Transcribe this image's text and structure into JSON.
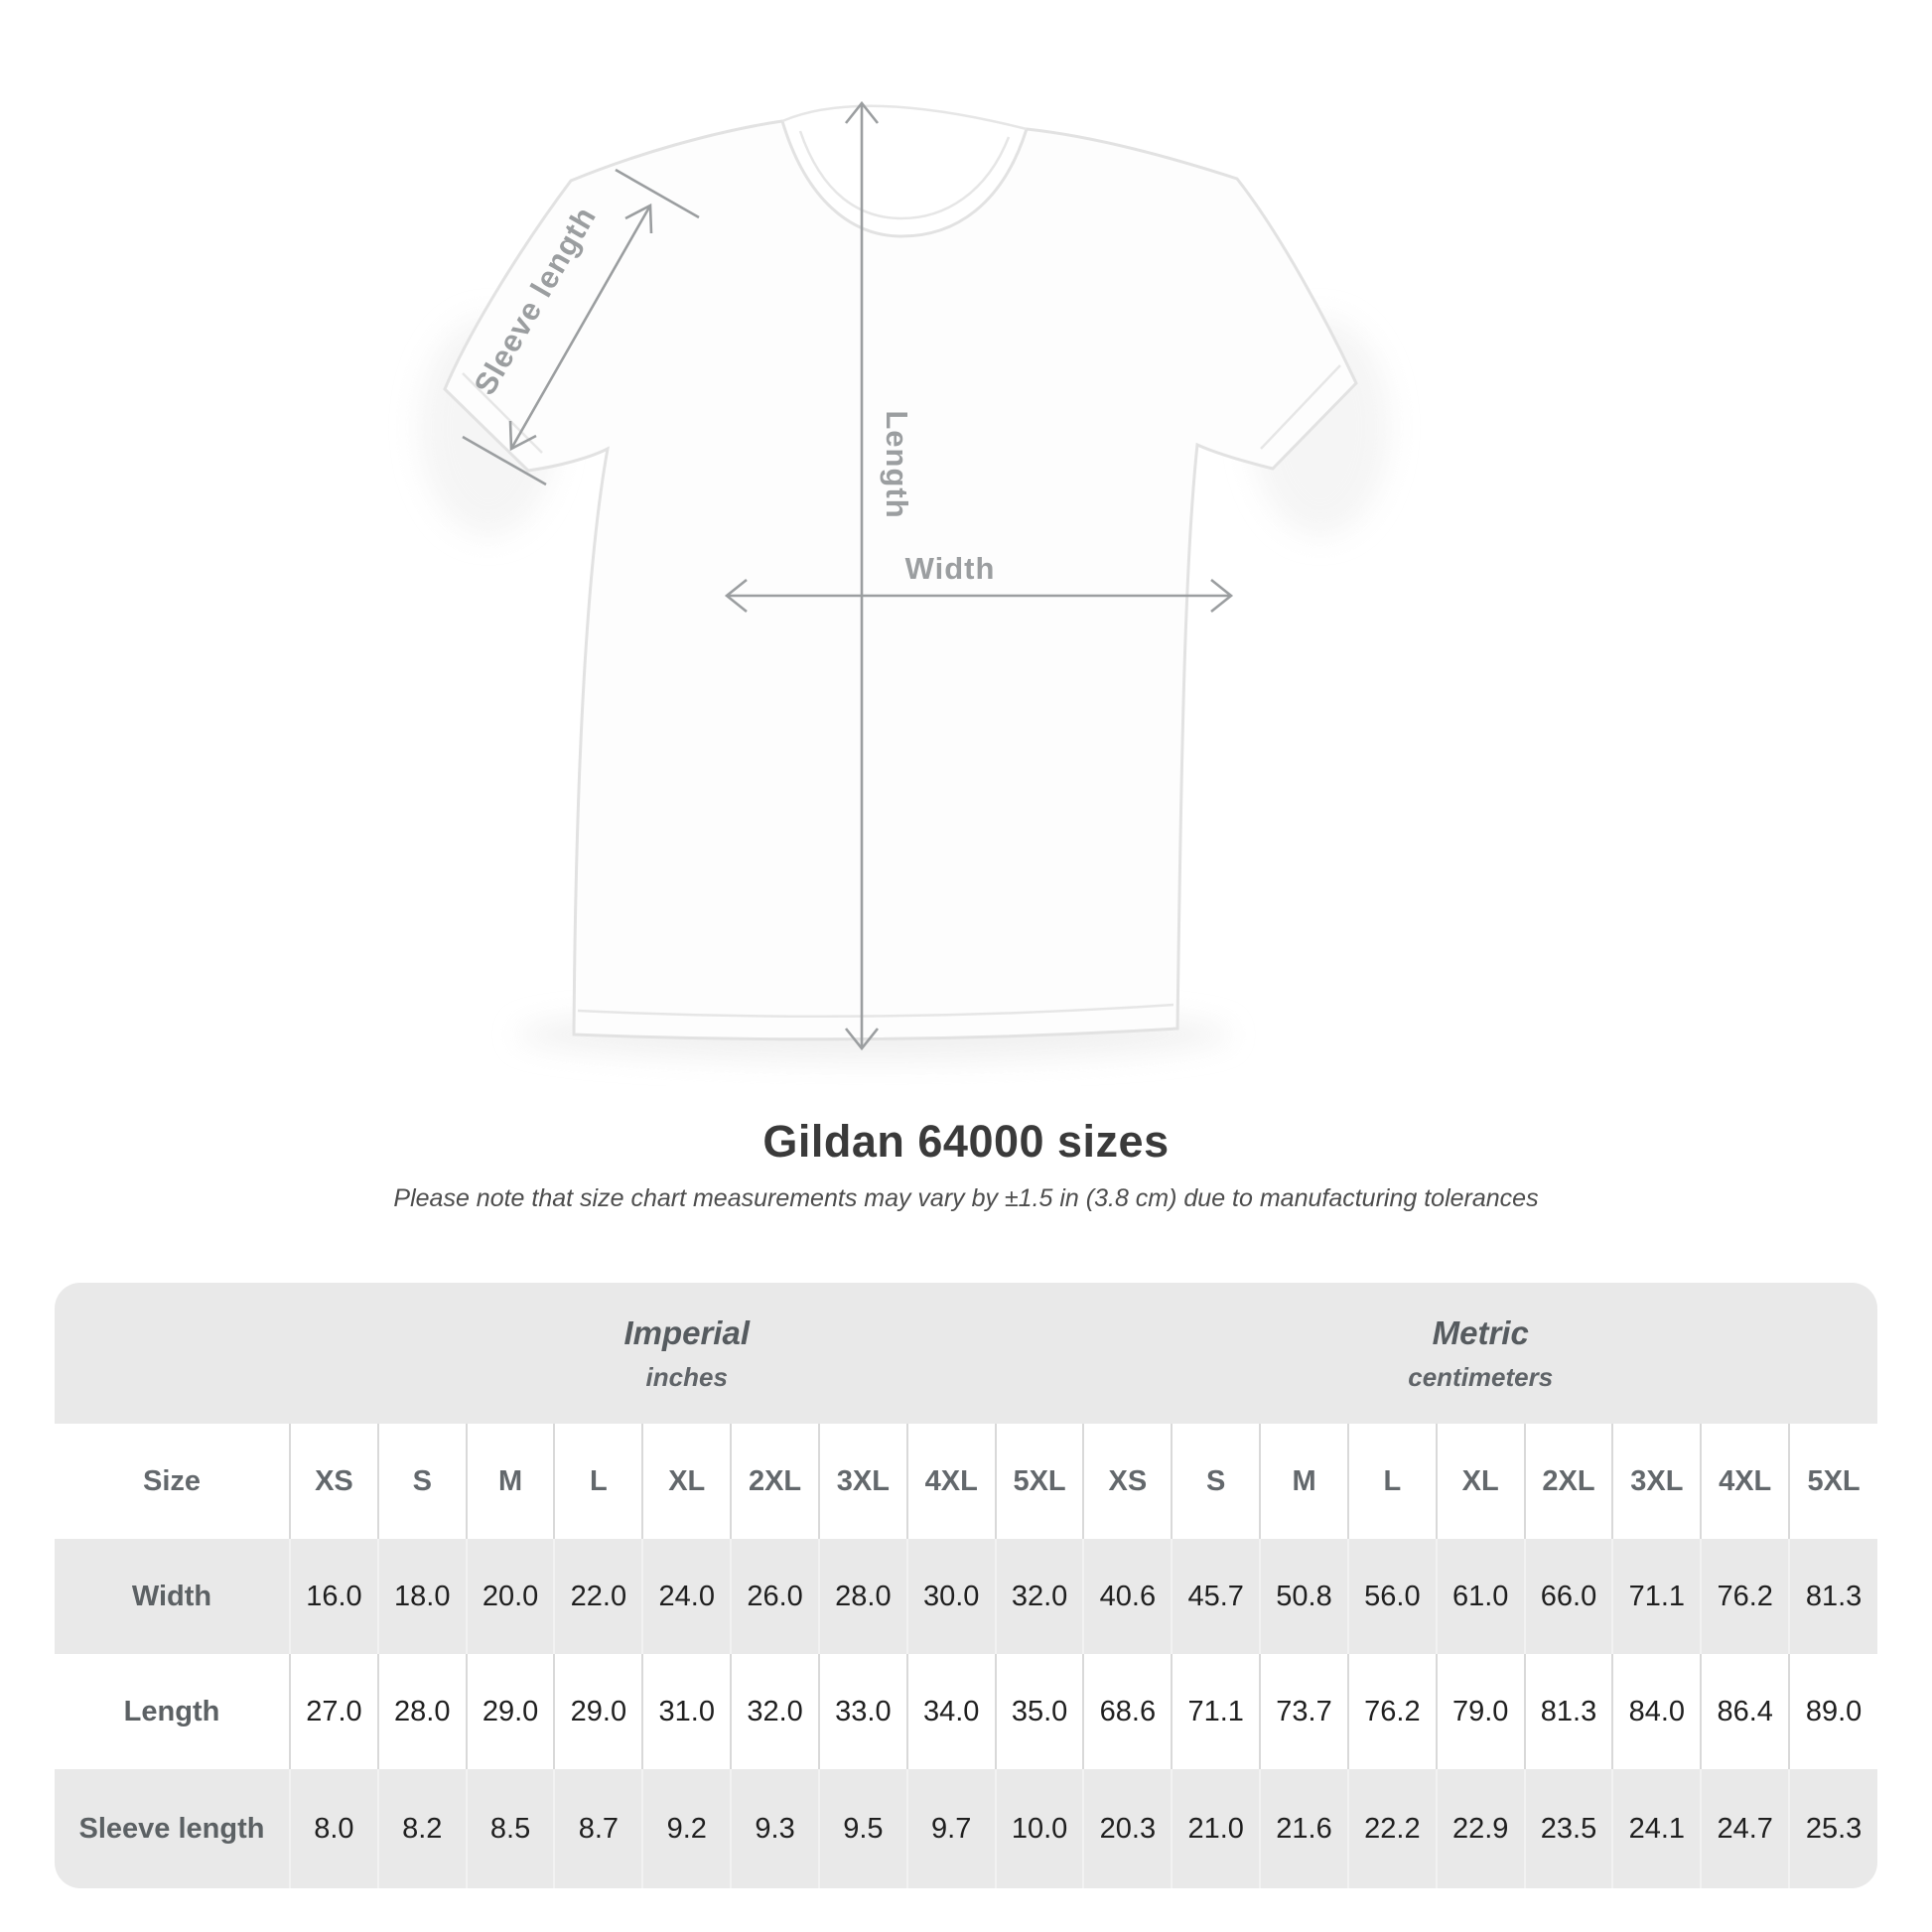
{
  "title": "Gildan 64000 sizes",
  "subtitle": "Please note that size chart measurements may vary by ±1.5 in (3.8 cm) due to manufacturing tolerances",
  "diagram": {
    "labels": {
      "sleeve_length": "Sleeve length",
      "length": "Length",
      "width": "Width"
    }
  },
  "table": {
    "size_col_header": "Size",
    "groups": [
      {
        "name": "Imperial",
        "unit": "inches",
        "sizes": [
          "XS",
          "S",
          "M",
          "L",
          "XL",
          "2XL",
          "3XL",
          "4XL",
          "5XL"
        ]
      },
      {
        "name": "Metric",
        "unit": "centimeters",
        "sizes": [
          "XS",
          "S",
          "M",
          "L",
          "XL",
          "2XL",
          "3XL",
          "4XL",
          "5XL"
        ]
      }
    ],
    "rows": [
      {
        "label": "Width",
        "values": [
          "16.0",
          "18.0",
          "20.0",
          "22.0",
          "24.0",
          "26.0",
          "28.0",
          "30.0",
          "32.0",
          "40.6",
          "45.7",
          "50.8",
          "56.0",
          "61.0",
          "66.0",
          "71.1",
          "76.2",
          "81.3"
        ]
      },
      {
        "label": "Length",
        "values": [
          "27.0",
          "28.0",
          "29.0",
          "29.0",
          "31.0",
          "32.0",
          "33.0",
          "34.0",
          "35.0",
          "68.6",
          "71.1",
          "73.7",
          "76.2",
          "79.0",
          "81.3",
          "84.0",
          "86.4",
          "89.0"
        ]
      },
      {
        "label": "Sleeve length",
        "values": [
          "8.0",
          "8.2",
          "8.5",
          "8.7",
          "9.2",
          "9.3",
          "9.5",
          "9.7",
          "10.0",
          "20.3",
          "21.0",
          "21.6",
          "22.2",
          "22.9",
          "23.5",
          "24.1",
          "24.7",
          "25.3"
        ]
      }
    ]
  },
  "chart_data": {
    "type": "table",
    "title": "Gildan 64000 sizes",
    "note": "Please note that size chart measurements may vary by ±1.5 in (3.8 cm) due to manufacturing tolerances",
    "unit_groups": [
      "Imperial (inches)",
      "Metric (centimeters)"
    ],
    "columns": [
      "Size",
      "XS",
      "S",
      "M",
      "L",
      "XL",
      "2XL",
      "3XL",
      "4XL",
      "5XL",
      "XS",
      "S",
      "M",
      "L",
      "XL",
      "2XL",
      "3XL",
      "4XL",
      "5XL"
    ],
    "rows": [
      [
        "Width",
        16.0,
        18.0,
        20.0,
        22.0,
        24.0,
        26.0,
        28.0,
        30.0,
        32.0,
        40.6,
        45.7,
        50.8,
        56.0,
        61.0,
        66.0,
        71.1,
        76.2,
        81.3
      ],
      [
        "Length",
        27.0,
        28.0,
        29.0,
        29.0,
        31.0,
        32.0,
        33.0,
        34.0,
        35.0,
        68.6,
        71.1,
        73.7,
        76.2,
        79.0,
        81.3,
        84.0,
        86.4,
        89.0
      ],
      [
        "Sleeve length",
        8.0,
        8.2,
        8.5,
        8.7,
        9.2,
        9.3,
        9.5,
        9.7,
        10.0,
        20.3,
        21.0,
        21.6,
        22.2,
        22.9,
        23.5,
        24.1,
        24.7,
        25.3
      ]
    ]
  },
  "colors": {
    "measure_line": "#9b9ea0",
    "title_text": "#3a3a3a",
    "table_band_bg": "#e9e9e9",
    "header_text": "#63686c",
    "value_text": "#1f1f1f"
  }
}
